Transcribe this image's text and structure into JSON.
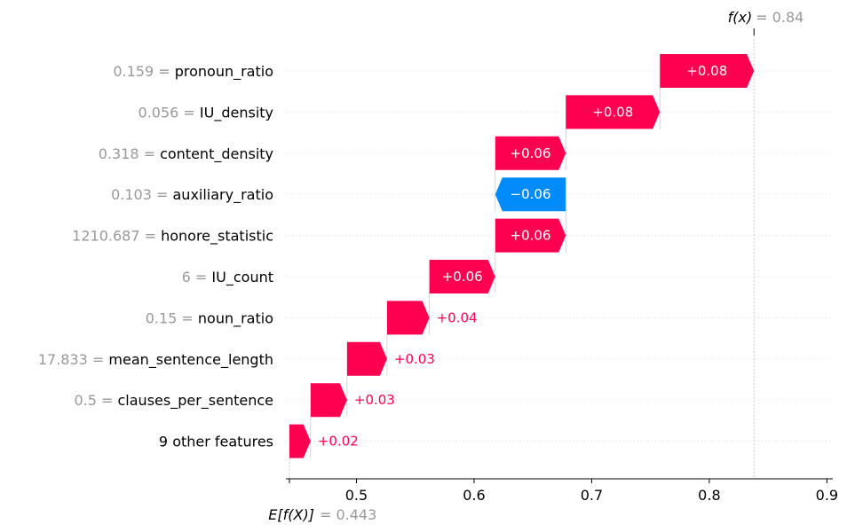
{
  "chart_data": {
    "type": "waterfall",
    "base_value": 0.443,
    "output_value": 0.84,
    "base_label": "E[f(X)]",
    "base_value_text": "0.443",
    "output_label": "f(x)",
    "output_value_text": "0.84",
    "xlim": [
      0.44,
      0.905
    ],
    "x_ticks": [
      0.5,
      0.6,
      0.7,
      0.8,
      0.9
    ],
    "x_tick_labels": [
      "0.5",
      "0.6",
      "0.7",
      "0.8",
      "0.9"
    ],
    "colors": {
      "positive": "#ff0051",
      "negative": "#008bfb",
      "value_text": "#999999"
    },
    "features": [
      {
        "value": "0.159",
        "name": "pronoun_ratio",
        "shap": 0.08,
        "label": "+0.08"
      },
      {
        "value": "0.056",
        "name": "IU_density",
        "shap": 0.08,
        "label": "+0.08"
      },
      {
        "value": "0.318",
        "name": "content_density",
        "shap": 0.06,
        "label": "+0.06"
      },
      {
        "value": "0.103",
        "name": "auxiliary_ratio",
        "shap": -0.06,
        "label": "−0.06"
      },
      {
        "value": "1210.687",
        "name": "honore_statistic",
        "shap": 0.06,
        "label": "+0.06"
      },
      {
        "value": "6",
        "name": "IU_count",
        "shap": 0.056,
        "label": "+0.06"
      },
      {
        "value": "0.15",
        "name": "noun_ratio",
        "shap": 0.036,
        "label": "+0.04"
      },
      {
        "value": "17.833",
        "name": "mean_sentence_length",
        "shap": 0.034,
        "label": "+0.03"
      },
      {
        "value": "0.5",
        "name": "clauses_per_sentence",
        "shap": 0.031,
        "label": "+0.03"
      },
      {
        "value": "",
        "name": "9 other features",
        "shap": 0.018,
        "label": "+0.02"
      }
    ]
  }
}
